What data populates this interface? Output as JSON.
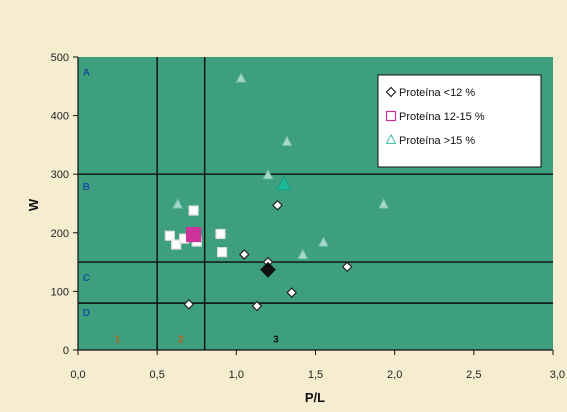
{
  "chart_data": {
    "type": "scatter",
    "xlabel": "P/L",
    "ylabel": "W",
    "xlim": [
      0,
      3
    ],
    "ylim": [
      0,
      500
    ],
    "x_ticks": [
      "0,0",
      "0,5",
      "1,0",
      "1,5",
      "2,0",
      "2,5",
      "3,0"
    ],
    "y_ticks": [
      "0",
      "100",
      "200",
      "300",
      "400",
      "500"
    ],
    "vertical_lines": [
      0.5,
      0.8
    ],
    "horizontal_lines": [
      80,
      150,
      300
    ],
    "zone_labels": [
      {
        "label": "A",
        "x": 0.03,
        "y": 475
      },
      {
        "label": "B",
        "x": 0.03,
        "y": 280
      },
      {
        "label": "C",
        "x": 0.03,
        "y": 125
      },
      {
        "label": "D",
        "x": 0.03,
        "y": 65
      }
    ],
    "region_labels": [
      {
        "label": "1",
        "x": 0.25,
        "y": 20,
        "color": "#b5651d"
      },
      {
        "label": "2",
        "x": 0.65,
        "y": 20,
        "color": "#b5651d"
      },
      {
        "label": "3",
        "x": 1.25,
        "y": 20,
        "color": "#111111"
      }
    ],
    "legend_position": "top-right",
    "series": [
      {
        "name": "Proteína <12 %",
        "marker": "diamond",
        "color": "#222222",
        "points": [
          [
            0.7,
            78
          ],
          [
            1.05,
            163
          ],
          [
            1.13,
            75
          ],
          [
            1.2,
            150
          ],
          [
            1.26,
            247
          ],
          [
            1.35,
            98
          ],
          [
            1.7,
            142
          ]
        ],
        "mean": [
          1.2,
          137
        ]
      },
      {
        "name": "Proteína 12-15 %",
        "marker": "square",
        "color": "#cc3399",
        "points": [
          [
            0.58,
            195
          ],
          [
            0.62,
            180
          ],
          [
            0.67,
            190
          ],
          [
            0.73,
            238
          ],
          [
            0.75,
            185
          ],
          [
            0.9,
            198
          ],
          [
            0.91,
            167
          ]
        ],
        "mean": [
          0.73,
          197
        ]
      },
      {
        "name": "Proteína >15 %",
        "marker": "triangle",
        "color": "#40b8a8",
        "points": [
          [
            0.63,
            248
          ],
          [
            1.03,
            463
          ],
          [
            1.2,
            298
          ],
          [
            1.32,
            355
          ],
          [
            1.42,
            162
          ],
          [
            1.55,
            183
          ],
          [
            1.93,
            248
          ]
        ],
        "mean": [
          1.3,
          282
        ]
      }
    ]
  },
  "colors": {
    "plot_background": "#3d9f7d",
    "page_background": "#f6eccf",
    "grid_line": "#0b0b0b"
  }
}
